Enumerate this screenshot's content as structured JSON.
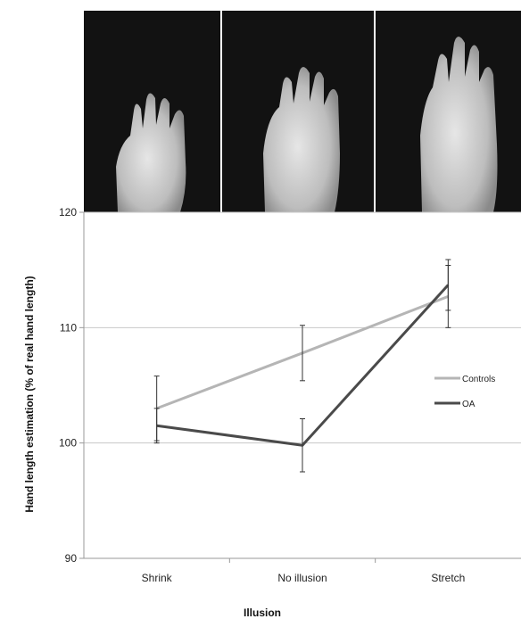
{
  "images": [
    {
      "name": "hand-shrink-photo",
      "illusion": "Shrink"
    },
    {
      "name": "hand-no-illusion-photo",
      "illusion": "No illusion"
    },
    {
      "name": "hand-stretch-photo",
      "illusion": "Stretch"
    }
  ],
  "chart_data": {
    "type": "line",
    "categories": [
      "Shrink",
      "No illusion",
      "Stretch"
    ],
    "xlabel": "Illusion",
    "ylabel": "Hand length estimation (% of real hand length)",
    "ylim": [
      90,
      120
    ],
    "yticks": [
      90,
      100,
      110,
      120
    ],
    "grid": true,
    "legend_position": "right",
    "series": [
      {
        "name": "Controls",
        "color": "#b5b5b5",
        "values": [
          103.0,
          107.8,
          112.7
        ],
        "error": [
          2.8,
          2.4,
          2.7
        ]
      },
      {
        "name": "OA",
        "color": "#4a4a4a",
        "values": [
          101.5,
          99.8,
          113.7
        ],
        "error": [
          1.5,
          2.3,
          2.2
        ]
      }
    ]
  }
}
